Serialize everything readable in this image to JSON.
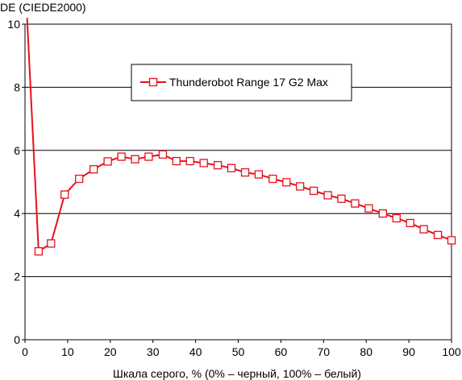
{
  "chart_data": {
    "type": "line",
    "title": "",
    "xlabel": "Шкала серого, % (0% – черный, 100% – белый)",
    "ylabel": "DE (CIEDE2000)",
    "xlim": [
      0,
      100
    ],
    "ylim": [
      0,
      10
    ],
    "x_ticks": [
      0,
      10,
      20,
      30,
      40,
      50,
      60,
      70,
      80,
      90,
      100
    ],
    "y_ticks": [
      0,
      2,
      4,
      6,
      8,
      10
    ],
    "x_tick_labels": [
      "0",
      "10",
      "20",
      "30",
      "40",
      "50",
      "60",
      "70",
      "80",
      "90",
      "100"
    ],
    "y_tick_labels": [
      "0",
      "2",
      "4",
      "6",
      "8",
      "10"
    ],
    "grid": "horizontal",
    "legend": "top-center",
    "series": [
      {
        "name": "Thunderobot Range 17 G2 Max",
        "color": "#e8101b",
        "marker": "open-square",
        "x": [
          0.5,
          3.2,
          6.1,
          9.3,
          12.7,
          16.1,
          19.4,
          22.6,
          25.8,
          29.0,
          32.3,
          35.5,
          38.7,
          41.9,
          45.2,
          48.4,
          51.6,
          54.8,
          58.1,
          61.3,
          64.5,
          67.7,
          71.0,
          74.2,
          77.4,
          80.6,
          83.9,
          87.1,
          90.3,
          93.5,
          96.8,
          100.0
        ],
        "y": [
          10.2,
          2.8,
          3.05,
          4.6,
          5.1,
          5.4,
          5.65,
          5.8,
          5.72,
          5.8,
          5.87,
          5.66,
          5.66,
          5.6,
          5.53,
          5.44,
          5.3,
          5.24,
          5.1,
          4.99,
          4.86,
          4.72,
          4.58,
          4.47,
          4.32,
          4.16,
          4.0,
          3.85,
          3.7,
          3.5,
          3.32,
          3.15
        ]
      }
    ]
  }
}
